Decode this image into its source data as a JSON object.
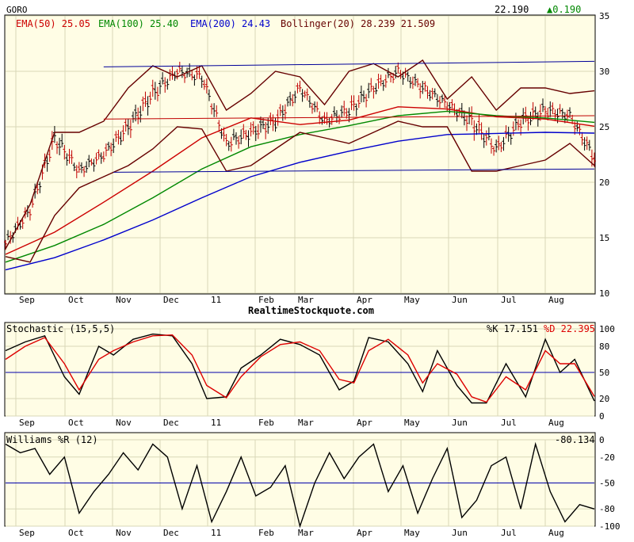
{
  "colors": {
    "panel_bg": "#fffde5",
    "grid": "#d8d8b8",
    "frame": "#000000",
    "price_bar": "#c00000",
    "price_bar_dark": "#000000",
    "ema50": "#cc0000",
    "ema100": "#008800",
    "ema200": "#0000cc",
    "bollinger": "#660000",
    "trendline": "#000099",
    "stoch_k": "#000000",
    "stoch_d": "#dd0000",
    "williams": "#000000",
    "ref_line": "#0000aa",
    "change_up": "#008800"
  },
  "header": {
    "symbol": "GORO",
    "last_price": "22.190",
    "change": "▲0.190",
    "legend": [
      {
        "text": "EMA(50) 25.05",
        "color": "#cc0000"
      },
      {
        "text": "EMA(100) 25.40",
        "color": "#008800"
      },
      {
        "text": "EMA(200) 24.43",
        "color": "#0000cc"
      },
      {
        "text": "Bollinger(20) 28.239 21.509",
        "color": "#660000"
      }
    ]
  },
  "watermark": "RealtimeStockquote.com",
  "stochastic_header": {
    "label": "Stochastic (15,5,5)",
    "k_text": "%K 17.151",
    "d_text": "%D 22.395"
  },
  "williams_header": {
    "label": "Williams %R (12)",
    "value_text": "-80.134"
  },
  "chart_data": [
    {
      "type": "line",
      "title": "GORO",
      "x_month_labels": [
        "Sep",
        "Oct",
        "Nov",
        "Dec",
        "11",
        "Feb",
        "Mar",
        "Apr",
        "May",
        "Jun",
        "Jul",
        "Aug"
      ],
      "ylim": [
        10,
        35
      ],
      "y_ticks": [
        10,
        15,
        20,
        25,
        30,
        35
      ],
      "grid": true,
      "series": [
        {
          "name": "EMA(50) 25.05",
          "key": "ema50",
          "x": [
            0,
            20,
            40,
            60,
            80,
            100,
            120,
            140,
            160,
            180,
            200,
            220,
            240
          ],
          "values": [
            13.5,
            15.5,
            18.2,
            21.0,
            24.0,
            25.8,
            25.2,
            25.6,
            26.8,
            26.6,
            25.9,
            25.7,
            25.05
          ]
        },
        {
          "name": "EMA(100) 25.40",
          "key": "ema100",
          "x": [
            0,
            20,
            40,
            60,
            80,
            100,
            120,
            140,
            160,
            180,
            200,
            220,
            240
          ],
          "values": [
            12.8,
            14.3,
            16.2,
            18.6,
            21.2,
            23.2,
            24.3,
            25.1,
            26.0,
            26.4,
            26.0,
            25.8,
            25.4
          ]
        },
        {
          "name": "EMA(200) 24.43",
          "key": "ema200",
          "x": [
            0,
            20,
            40,
            60,
            80,
            100,
            120,
            140,
            160,
            180,
            200,
            220,
            240
          ],
          "values": [
            12.1,
            13.2,
            14.8,
            16.6,
            18.6,
            20.5,
            21.8,
            22.8,
            23.7,
            24.3,
            24.4,
            24.5,
            24.43
          ]
        },
        {
          "name": "Bollinger upper",
          "key": "boll_upper",
          "x": [
            0,
            10,
            20,
            30,
            40,
            50,
            60,
            70,
            80,
            90,
            100,
            110,
            120,
            130,
            140,
            150,
            160,
            170,
            180,
            190,
            200,
            210,
            220,
            230,
            240
          ],
          "values": [
            14,
            18,
            24.5,
            24.5,
            25.5,
            28.5,
            30.5,
            29.5,
            30.5,
            26.5,
            28,
            30,
            29.5,
            27,
            30,
            30.7,
            29.5,
            31,
            27.5,
            29.5,
            26.5,
            28.5,
            28.5,
            28,
            28.24
          ]
        },
        {
          "name": "Bollinger lower",
          "key": "boll_lower",
          "x": [
            0,
            10,
            20,
            30,
            40,
            50,
            60,
            70,
            80,
            90,
            100,
            110,
            120,
            130,
            140,
            150,
            160,
            170,
            180,
            190,
            200,
            210,
            220,
            230,
            240
          ],
          "values": [
            13.3,
            12.8,
            17,
            19.5,
            20.5,
            21.5,
            23,
            25,
            24.8,
            21,
            21.5,
            23,
            24.5,
            24,
            23.5,
            24.5,
            25.5,
            25,
            25,
            21,
            21,
            21.5,
            22,
            23.5,
            21.51
          ]
        },
        {
          "name": "Close",
          "key": "close",
          "x": [
            0,
            10,
            20,
            30,
            40,
            50,
            60,
            70,
            80,
            90,
            100,
            110,
            120,
            130,
            140,
            150,
            160,
            170,
            180,
            190,
            200,
            210,
            220,
            230,
            240
          ],
          "values": [
            14.5,
            17.5,
            24,
            21,
            22.5,
            25,
            28,
            30,
            29.5,
            23.5,
            24.5,
            25.5,
            28.5,
            25.5,
            26.5,
            28.5,
            30,
            28.5,
            27,
            25.5,
            23,
            25.5,
            26.5,
            26,
            22.19
          ]
        },
        {
          "name": "Resistance",
          "key": "trend_top",
          "x": [
            40,
            240
          ],
          "values": [
            30.4,
            30.9
          ]
        },
        {
          "name": "Mid line",
          "key": "trend_mid",
          "x": [
            40,
            240
          ],
          "values": [
            25.7,
            26.0
          ]
        },
        {
          "name": "Support",
          "key": "trend_low",
          "x": [
            44,
            240
          ],
          "values": [
            20.9,
            21.2
          ]
        }
      ]
    },
    {
      "type": "line",
      "title": "Stochastic (15,5,5)",
      "ylim": [
        0,
        100
      ],
      "y_ticks": [
        0,
        20,
        50,
        80,
        100
      ],
      "reference_lines": [
        50
      ],
      "series": [
        {
          "name": "%K 17.151",
          "key": "k",
          "x": [
            0,
            8,
            16,
            24,
            30,
            38,
            44,
            52,
            60,
            68,
            76,
            82,
            90,
            96,
            104,
            112,
            120,
            128,
            136,
            142,
            148,
            156,
            164,
            170,
            176,
            184,
            190,
            196,
            204,
            212,
            220,
            226,
            232,
            240
          ],
          "values": [
            75,
            85,
            92,
            45,
            25,
            80,
            70,
            88,
            94,
            92,
            60,
            20,
            22,
            55,
            70,
            88,
            82,
            70,
            30,
            40,
            90,
            85,
            60,
            28,
            75,
            35,
            15,
            15,
            60,
            22,
            88,
            50,
            65,
            17.15
          ]
        },
        {
          "name": "%D 22.395",
          "key": "d",
          "x": [
            0,
            8,
            16,
            24,
            30,
            38,
            44,
            52,
            60,
            68,
            76,
            82,
            90,
            96,
            104,
            112,
            120,
            128,
            136,
            142,
            148,
            156,
            164,
            170,
            176,
            184,
            190,
            196,
            204,
            212,
            220,
            226,
            232,
            240
          ],
          "values": [
            65,
            80,
            90,
            60,
            30,
            65,
            75,
            85,
            92,
            93,
            70,
            35,
            21,
            45,
            68,
            82,
            85,
            75,
            42,
            38,
            75,
            88,
            70,
            38,
            60,
            48,
            22,
            16,
            45,
            30,
            75,
            60,
            60,
            22.4
          ]
        }
      ]
    },
    {
      "type": "line",
      "title": "Williams %R (12)",
      "ylim": [
        -100,
        0
      ],
      "y_ticks": [
        0,
        -20,
        -50,
        -80,
        -100
      ],
      "reference_lines": [
        -50
      ],
      "series": [
        {
          "name": "Williams %R",
          "key": "wr",
          "x": [
            0,
            6,
            12,
            18,
            24,
            30,
            36,
            42,
            48,
            54,
            60,
            66,
            72,
            78,
            84,
            90,
            96,
            102,
            108,
            114,
            120,
            126,
            132,
            138,
            144,
            150,
            156,
            162,
            168,
            174,
            180,
            186,
            192,
            198,
            204,
            210,
            216,
            222,
            228,
            234,
            240
          ],
          "values": [
            -5,
            -15,
            -10,
            -40,
            -20,
            -85,
            -60,
            -40,
            -15,
            -35,
            -5,
            -20,
            -80,
            -30,
            -95,
            -60,
            -20,
            -65,
            -55,
            -30,
            -100,
            -50,
            -15,
            -45,
            -20,
            -5,
            -60,
            -30,
            -85,
            -45,
            -10,
            -90,
            -70,
            -30,
            -20,
            -80,
            -5,
            -60,
            -95,
            -75,
            -80.13
          ]
        }
      ]
    }
  ]
}
